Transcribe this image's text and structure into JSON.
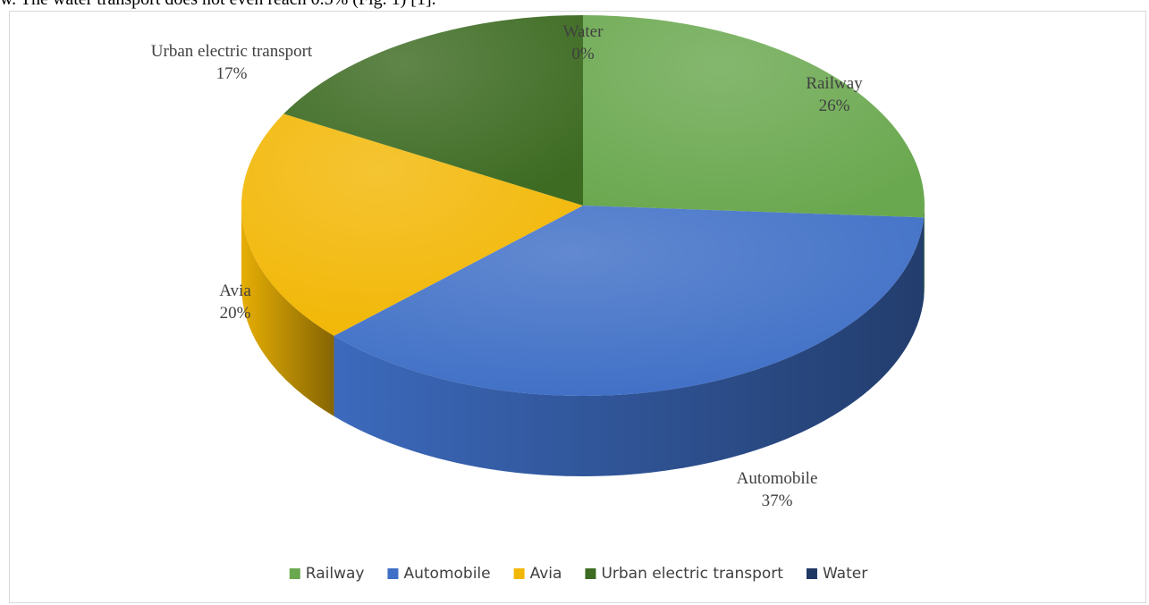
{
  "cropped_top_text": "w. The water transport does not even reach 0.5% (Fig. 1) [1].",
  "chart_data": {
    "type": "pie",
    "title": "",
    "categories": [
      "Railway",
      "Automobile",
      "Avia",
      "Urban electric transport",
      "Water"
    ],
    "values": [
      26,
      37,
      20,
      17,
      0
    ],
    "value_labels": [
      "26%",
      "37%",
      "20%",
      "17%",
      "0%"
    ],
    "colors": [
      "#6aa84f",
      "#3f6fc6",
      "#f2b705",
      "#3d6b22",
      "#1f3864"
    ],
    "legend": "bottom",
    "style": "3d"
  }
}
